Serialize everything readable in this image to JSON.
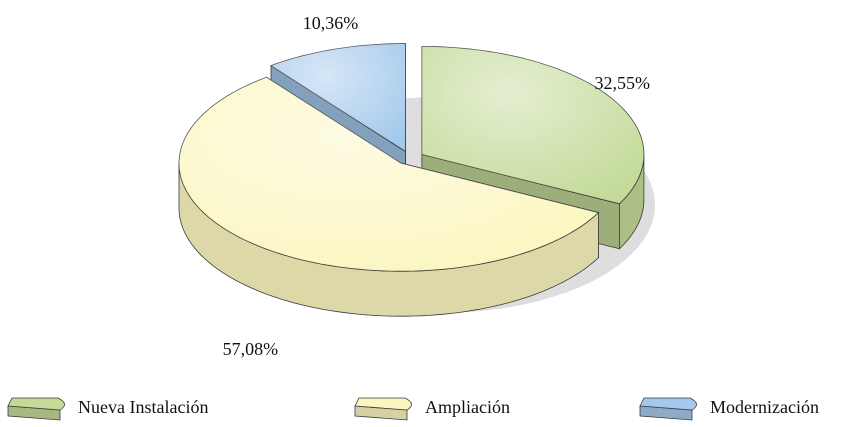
{
  "chart_data": {
    "type": "pie3d",
    "categories": [
      "Nueva Instalación",
      "Ampliación",
      "Modernización"
    ],
    "values": [
      32.55,
      57.08,
      10.36
    ],
    "value_labels": [
      "32,55%",
      "57,08%",
      "10,36%"
    ],
    "colors": [
      "#c3da98",
      "#fbf6bf",
      "#a4c9ec"
    ],
    "legend": "bottom"
  }
}
